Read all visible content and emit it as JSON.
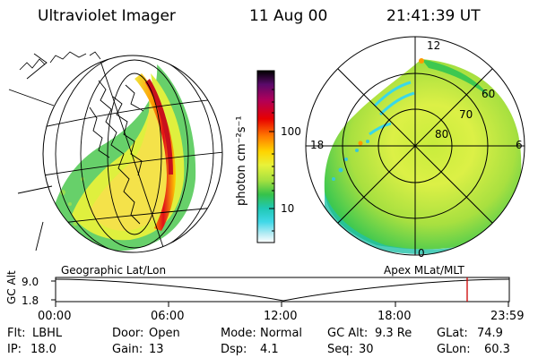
{
  "header": {
    "instrument": "Ultraviolet Imager",
    "date": "11 Aug 00",
    "time": "21:41:39 UT"
  },
  "colorbar": {
    "label": "photon cm⁻²s⁻¹",
    "tick_labels": [
      "100",
      "10"
    ],
    "scale": "log"
  },
  "panels": {
    "left_title": "Geographic Lat/Lon",
    "right_title": "Apex MLat/MLT"
  },
  "polar_plot": {
    "mlt_labels": [
      "12",
      "18",
      "6",
      "0"
    ],
    "mlat_labels": [
      "60",
      "70",
      "80"
    ]
  },
  "altitude_strip": {
    "axis_label": "GC Alt",
    "y_ticks": [
      "9.0",
      "1.8"
    ],
    "x_ticks": [
      "00:00",
      "06:00",
      "12:00",
      "18:00",
      "23:59"
    ],
    "current_marker_color": "#cc0000"
  },
  "status": {
    "row1": [
      {
        "label": "Flt:",
        "value": "LBHL"
      },
      {
        "label": "Door:",
        "value": "Open"
      },
      {
        "label": "Mode:",
        "value": "Normal"
      },
      {
        "label": "GC Alt:",
        "value": "9.3 Re"
      },
      {
        "label": "GLat:",
        "value": "74.9"
      }
    ],
    "row2": [
      {
        "label": "IP:",
        "value": "18.0"
      },
      {
        "label": "Gain:",
        "value": "13"
      },
      {
        "label": "Dsp:",
        "value": "4.1"
      },
      {
        "label": "Seq:",
        "value": "30"
      },
      {
        "label": "GLon:",
        "value": "60.3"
      }
    ]
  }
}
